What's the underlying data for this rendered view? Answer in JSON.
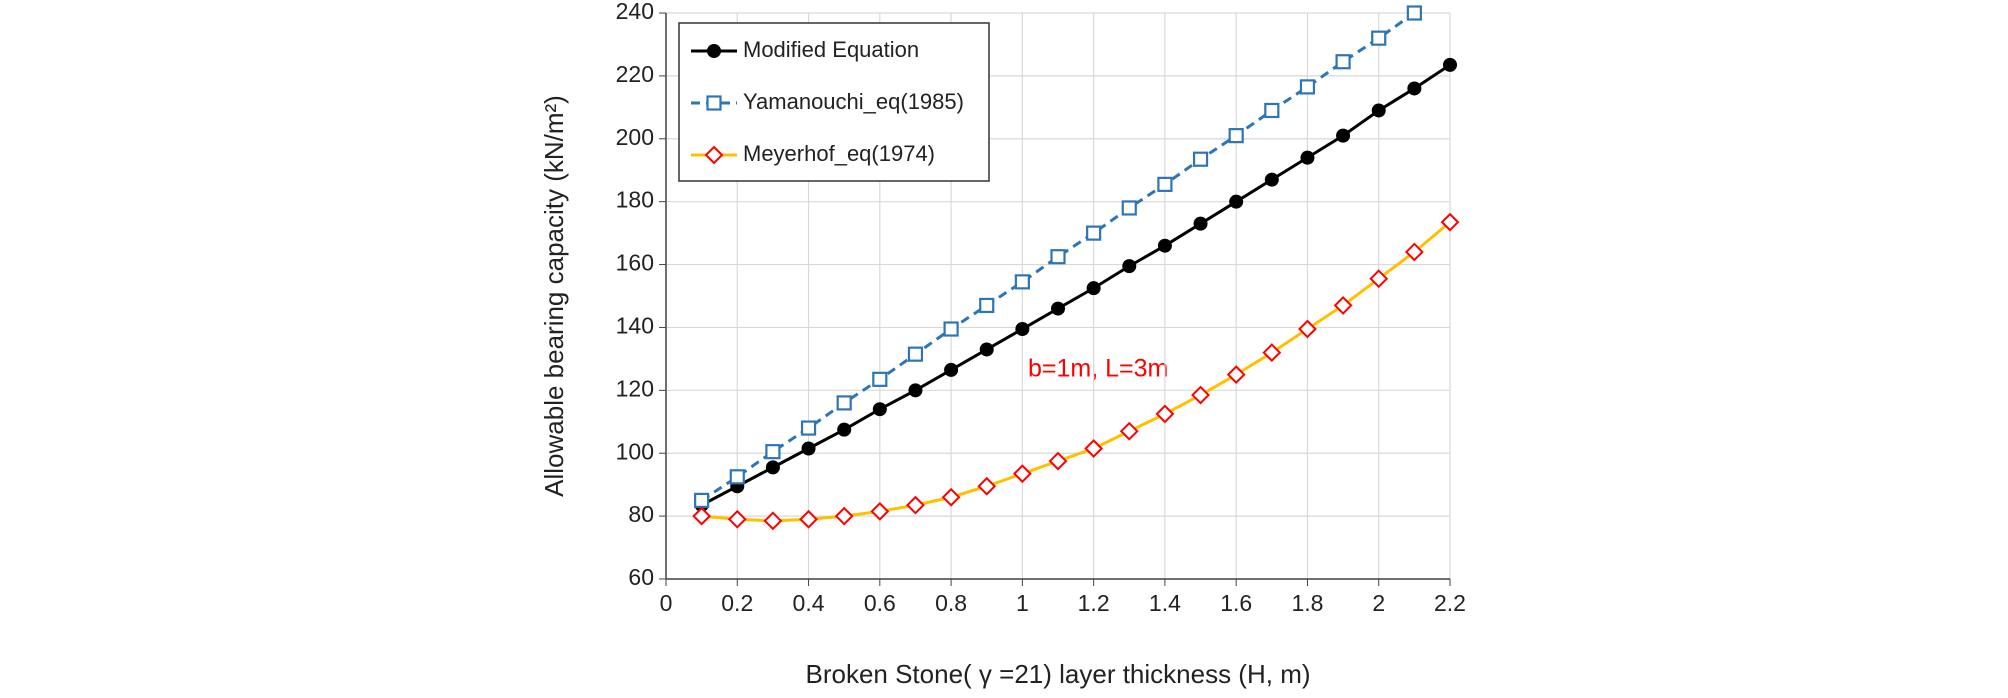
{
  "chart_data": {
    "type": "line",
    "x_label": "Broken Stone( γ =21) layer thickness (H, m)",
    "y_label": "Allowable bearing capacity (kN/m²)",
    "annotation": "b=1m, L=3m",
    "xlim": [
      0,
      2.2
    ],
    "xticks": [
      0,
      0.2,
      0.4,
      0.6,
      0.8,
      1,
      1.2,
      1.4,
      1.6,
      1.8,
      2,
      2.2
    ],
    "ylim": [
      60,
      240
    ],
    "yticks": [
      60,
      80,
      100,
      120,
      140,
      160,
      180,
      200,
      220,
      240
    ],
    "grid": true,
    "legend": "upper left",
    "series": [
      {
        "name": "Modified Equation",
        "color": "#000000",
        "marker": "circle",
        "dash": false,
        "x": [
          0.1,
          0.2,
          0.3,
          0.4,
          0.5,
          0.6,
          0.7,
          0.8,
          0.9,
          1,
          1.1,
          1.2,
          1.3,
          1.4,
          1.5,
          1.6,
          1.7,
          1.8,
          1.9,
          2,
          2.1,
          2.2
        ],
        "values": [
          83.5,
          89.5,
          95.5,
          101.5,
          107.5,
          114,
          120,
          126.5,
          133,
          139.5,
          146,
          152.5,
          159.5,
          166,
          173,
          180,
          187,
          194,
          201,
          209,
          216,
          223.5
        ]
      },
      {
        "name": "Yamanouchi_eq(1985)",
        "color": "#2e75b6",
        "marker": "square",
        "dash": true,
        "x": [
          0.1,
          0.2,
          0.3,
          0.4,
          0.5,
          0.6,
          0.7,
          0.8,
          0.9,
          1,
          1.1,
          1.2,
          1.3,
          1.4,
          1.5,
          1.6,
          1.7,
          1.8,
          1.9,
          2,
          2.1
        ],
        "values": [
          85,
          92.5,
          100.5,
          108,
          116,
          123.5,
          131.5,
          139.5,
          147,
          154.5,
          162.5,
          170,
          178,
          185.5,
          193.5,
          201,
          209,
          216.5,
          224.5,
          232,
          240
        ]
      },
      {
        "name": "Meyerhof_eq(1974)",
        "color": "#ffc000",
        "marker_color": "#ff0000",
        "marker": "diamond",
        "dash": false,
        "x": [
          0.1,
          0.2,
          0.3,
          0.4,
          0.5,
          0.6,
          0.7,
          0.8,
          0.9,
          1,
          1.1,
          1.2,
          1.3,
          1.4,
          1.5,
          1.6,
          1.7,
          1.8,
          1.9,
          2,
          2.1,
          2.2
        ],
        "values": [
          80,
          79,
          78.5,
          79,
          80,
          81.5,
          83.5,
          86,
          89.5,
          93.5,
          97.5,
          101.5,
          107,
          112.5,
          118.5,
          125,
          132,
          139.5,
          147,
          155.5,
          164,
          173.5
        ]
      }
    ]
  }
}
